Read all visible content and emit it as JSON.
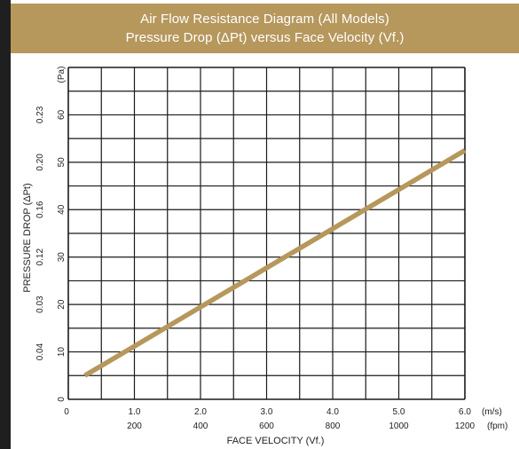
{
  "header": {
    "title": "Air Flow Resistance Diagram (All Models)",
    "subtitle": "Pressure Drop (ΔPt) versus Face Velocity (Vf.)"
  },
  "colors": {
    "header_bg": "#b6975c",
    "line": "#b6975c",
    "grid": "#1a1a1a"
  },
  "chart_data": {
    "type": "line",
    "title": "Air Flow Resistance Diagram (All Models)",
    "subtitle": "Pressure Drop (ΔPt) versus Face Velocity (Vf.)",
    "xlabel": "FACE VELOCITY (Vf.)",
    "ylabel": "PRESSURE DROP (ΔPt)",
    "x_unit_primary": "(m/s)",
    "x_unit_secondary": "(fpm)",
    "y_unit_primary": "(Pa)",
    "xlim": [
      0,
      6
    ],
    "ylim": [
      0,
      70
    ],
    "grid": true,
    "x_ticks_ms": [
      "0",
      "1.0",
      "2.0",
      "3.0",
      "4.0",
      "5.0",
      "6.0"
    ],
    "x_ticks_fpm": [
      "",
      "200",
      "400",
      "600",
      "800",
      "1000",
      "1200"
    ],
    "y_ticks_pa": [
      "0",
      "10",
      "20",
      "30",
      "40",
      "50",
      "60"
    ],
    "y_ticks_secondary": [
      "",
      "0.04",
      "0.03",
      "0.12",
      "0.16",
      "0.20",
      "0.23"
    ],
    "series": [
      {
        "x": [
          0.25,
          6.0
        ],
        "y": [
          5,
          52.5
        ]
      }
    ]
  }
}
